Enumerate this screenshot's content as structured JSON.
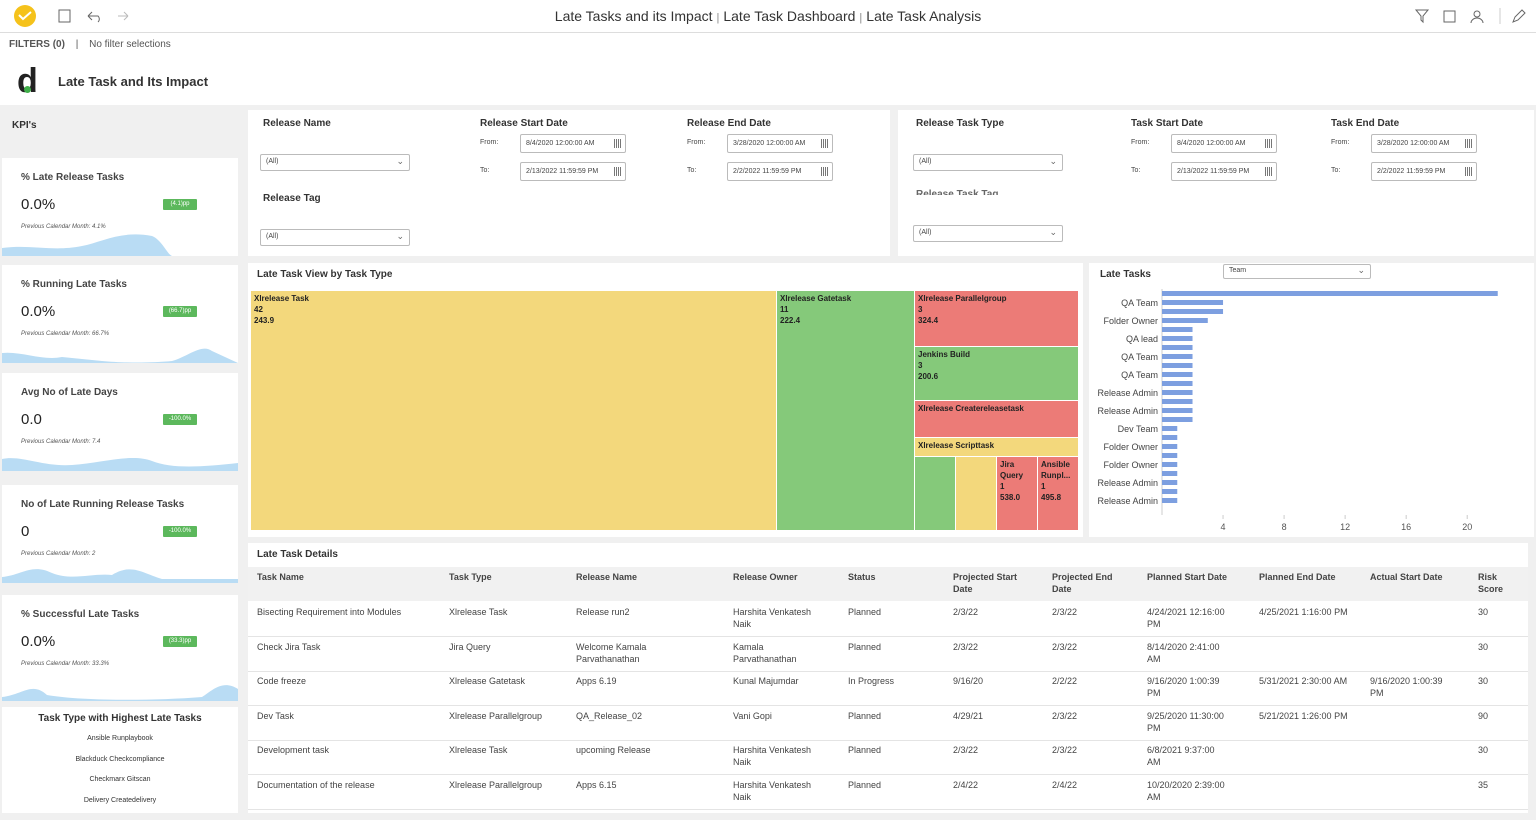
{
  "header": {
    "breadcrumbs": [
      "Late Tasks and its Impact",
      "Late Task Dashboard",
      "Late Task Analysis"
    ],
    "separator": "|"
  },
  "filter_bar": {
    "label": "FILTERS (0)",
    "separator": "|",
    "status": "No filter selections"
  },
  "dashboard": {
    "logo": "d",
    "title": "Late Task and Its Impact"
  },
  "kpis": {
    "title": "KPI's",
    "cards": [
      {
        "label": "% Late Release Tasks",
        "value": "0.0%",
        "change": "(4.1)pp",
        "previous": "Previous Calendar Month: 4.1%"
      },
      {
        "label": "% Running Late Tasks",
        "value": "0.0%",
        "change": "(66.7)pp",
        "previous": "Previous Calendar Month: 66.7%"
      },
      {
        "label": "Avg No of Late Days",
        "value": "0.0",
        "change": "-100.0%",
        "previous": "Previous Calendar Month: 7.4"
      },
      {
        "label": "No of Late Running Release Tasks",
        "value": "0",
        "change": "-100.0%",
        "previous": "Previous Calendar Month: 2"
      },
      {
        "label": "% Successful Late Tasks",
        "value": "0.0%",
        "change": "(33.3)pp",
        "previous": "Previous Calendar Month: 33.3%"
      }
    ]
  },
  "top_task_types": {
    "title": "Task Type with Highest Late Tasks",
    "items": [
      "Ansible Runplaybook",
      "Blackduck Checkcompliance",
      "Checkmarx Gitscan",
      "Delivery Createdelivery"
    ]
  },
  "filters": {
    "from_label": "From:",
    "to_label": "To:",
    "dropdowns": [
      {
        "label": "Release Name",
        "value": "(All)"
      },
      {
        "label": "Release Tag",
        "value": "(All)"
      },
      {
        "label": "Release Task Type",
        "value": "(All)"
      },
      {
        "label": "Release Task Tag",
        "value": "(All)"
      }
    ],
    "date_ranges": [
      {
        "label": "Release Start Date",
        "from": "8/4/2020 12:00:00 AM",
        "to": "2/13/2022 11:59:59 PM"
      },
      {
        "label": "Release End Date",
        "from": "3/28/2020 12:00:00 AM",
        "to": "2/2/2022 11:59:59 PM"
      },
      {
        "label": "Task Start Date",
        "from": "8/4/2020 12:00:00 AM",
        "to": "2/13/2022 11:59:59 PM"
      },
      {
        "label": "Task End Date",
        "from": "3/28/2020 12:00:00 AM",
        "to": "2/2/2022 11:59:59 PM"
      }
    ]
  },
  "chart_data": [
    {
      "type": "treemap",
      "title": "Late Task View by Task Type",
      "categories": [
        "Xlrelease Task",
        "Xlrelease Gatetask",
        "Xlrelease Parallelgroup",
        "Jenkins Build",
        "Xlrelease Createreleasetask",
        "Xlrelease Scripttask",
        null,
        null,
        "Jira Query",
        "Ansible Runpl..."
      ],
      "counts": [
        42,
        11,
        3,
        3,
        null,
        null,
        null,
        null,
        1,
        1
      ],
      "values": [
        243.9,
        222.4,
        324.4,
        200.6,
        null,
        null,
        null,
        null,
        538.0,
        495.8
      ],
      "value_labels": [
        "243.9",
        "222.4",
        "324.4",
        "200.6",
        null,
        null,
        null,
        null,
        "538.0",
        "495.8"
      ],
      "colors": [
        "#f3d87c",
        "#85c97a",
        "#ec7b77",
        "#85c97a",
        "#ec7b77",
        "#f3d87c",
        "#85c97a",
        "#f3d87c",
        "#ec7b77",
        "#ec7b77"
      ]
    },
    {
      "type": "bar",
      "orientation": "horizontal",
      "title": "Late Tasks",
      "dropdown": "Team",
      "categories": [
        null,
        "QA Team",
        null,
        "Folder Owner",
        null,
        "QA lead",
        null,
        "QA Team",
        null,
        "QA Team",
        null,
        "Release Admin",
        null,
        "Release Admin",
        null,
        "Dev Team",
        null,
        "Folder Owner",
        null,
        "Folder Owner",
        null,
        "Release Admin",
        null,
        "Release Admin"
      ],
      "values": [
        22,
        4,
        4,
        3,
        2,
        2,
        2,
        2,
        2,
        2,
        2,
        2,
        2,
        2,
        2,
        1,
        1,
        1,
        1,
        1,
        1,
        1,
        1,
        1
      ],
      "color": "#7d9fe0",
      "xlim": [
        0,
        23
      ],
      "xticks": [
        4,
        8,
        12,
        16,
        20
      ]
    }
  ],
  "table": {
    "title": "Late Task Details",
    "columns": [
      "Task Name",
      "Task Type",
      "Release Name",
      "Release Owner",
      "Status",
      "Projected Start Date",
      "Projected End Date",
      "Planned Start Date",
      "Planned End Date",
      "Actual Start Date",
      "Risk Score"
    ],
    "rows": [
      [
        "Bisecting Requirement into Modules",
        "Xlrelease Task",
        "Release run2",
        "Harshita Venkatesh Naik",
        "Planned",
        "2/3/22",
        "2/3/22",
        "4/24/2021 12:16:00 PM",
        "4/25/2021 1:16:00 PM",
        null,
        "30"
      ],
      [
        "Check Jira Task",
        "Jira Query",
        "Welcome Kamala Parvathanathan",
        "Kamala Parvathanathan",
        "Planned",
        "2/3/22",
        "2/3/22",
        "8/14/2020 2:41:00 AM",
        null,
        null,
        "30"
      ],
      [
        "Code freeze",
        "Xlrelease Gatetask",
        "Apps 6.19",
        "Kunal Majumdar",
        "In Progress",
        "9/16/20",
        "2/2/22",
        "9/16/2020 1:00:39 PM",
        "5/31/2021 2:30:00 AM",
        "9/16/2020 1:00:39 PM",
        "30"
      ],
      [
        "Dev Task",
        "Xlrelease Parallelgroup",
        "QA_Release_02",
        "Vani Gopi",
        "Planned",
        "4/29/21",
        "2/3/22",
        "9/25/2020 11:30:00 PM",
        "5/21/2021 1:26:00 PM",
        null,
        "90"
      ],
      [
        "Development task",
        "Xlrelease Task",
        "upcoming Release",
        "Harshita Venkatesh Naik",
        "Planned",
        "2/3/22",
        "2/3/22",
        "6/8/2021 9:37:00 AM",
        null,
        null,
        "30"
      ],
      [
        "Documentation of the release",
        "Xlrelease Parallelgroup",
        "Apps 6.15",
        "Harshita Venkatesh Naik",
        "Planned",
        "2/4/22",
        "2/4/22",
        "10/20/2020 2:39:00 AM",
        null,
        null,
        "35"
      ]
    ]
  }
}
